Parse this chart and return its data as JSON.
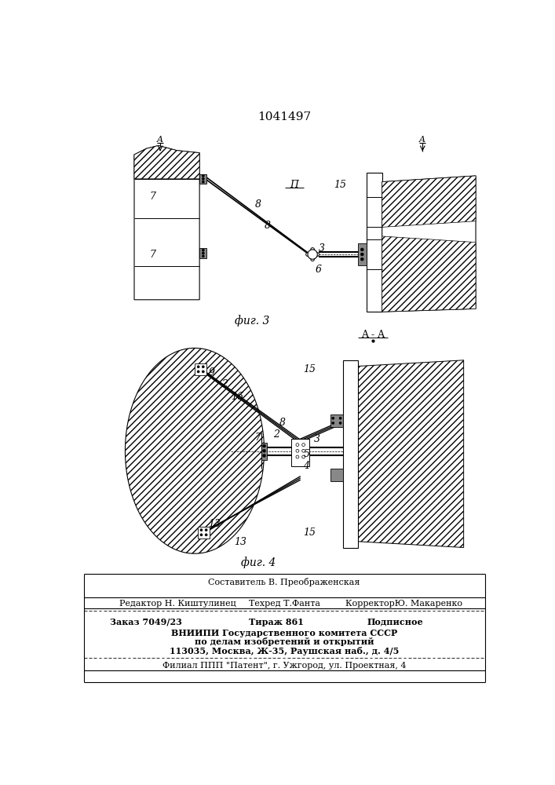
{
  "patent_number": "1041497",
  "fig3_label": "фиг. 3",
  "fig4_label": "фиг. 4",
  "section_label": "A - A",
  "section_II": "ПП",
  "footer_line0_center": "Составитель В. Преображенская",
  "footer_line1_left": "Редактор Н. Киштулинец",
  "footer_line1_center": "Техред Т.Фанта",
  "footer_line1_right": "КорректорЮ. Макаренко",
  "footer_line2_left": "Заказ 7049/23",
  "footer_line2_center": "Тираж 861",
  "footer_line2_right": "Подписное",
  "footer_line3": "ВНИИПИ Государственного комитета СССР",
  "footer_line4": "по делам изобретений и открытий",
  "footer_line5": "113035, Москва, Ж-35, Раушская наб., д. 4/5",
  "footer_line6": "Филиал ППП \"Патент\", г. Ужгород, ул. Проектная, 4",
  "bg_color": "#ffffff"
}
